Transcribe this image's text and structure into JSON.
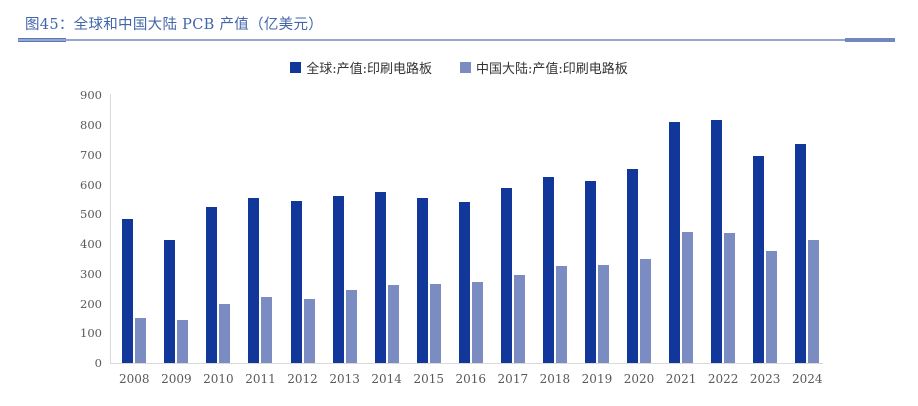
{
  "figure": {
    "title": "图45：全球和中国大陆 PCB 产值（亿美元）"
  },
  "colors": {
    "title_text": "#4266A9",
    "global_bar": "#11379B",
    "china_bar": "#7A8CC2",
    "axis_line": "#D9D9D9",
    "tick_text": "#595959",
    "legend_text": "#333333"
  },
  "chart_data": {
    "type": "bar",
    "title": "图45：全球和中国大陆 PCB 产值（亿美元）",
    "xlabel": "",
    "ylabel": "",
    "ylim": [
      0,
      900
    ],
    "y_ticks": [
      0,
      100,
      200,
      300,
      400,
      500,
      600,
      700,
      800,
      900
    ],
    "grid": false,
    "legend_position": "top-center",
    "categories": [
      "2008",
      "2009",
      "2010",
      "2011",
      "2012",
      "2013",
      "2014",
      "2015",
      "2016",
      "2017",
      "2018",
      "2019",
      "2020",
      "2021",
      "2022",
      "2023",
      "2024"
    ],
    "series": [
      {
        "key": "global",
        "name": "全球:产值:印刷电路板",
        "color": "#11379B",
        "values": [
          484,
          412,
          526,
          554,
          543,
          562,
          574,
          554,
          542,
          588,
          624,
          613,
          652,
          809,
          817,
          695,
          735
        ]
      },
      {
        "key": "china",
        "name": "中国大陆:产值:印刷电路板",
        "color": "#7A8CC2",
        "values": [
          150,
          143,
          200,
          221,
          216,
          246,
          261,
          267,
          271,
          297,
          327,
          330,
          351,
          442,
          436,
          378,
          412
        ]
      }
    ]
  }
}
